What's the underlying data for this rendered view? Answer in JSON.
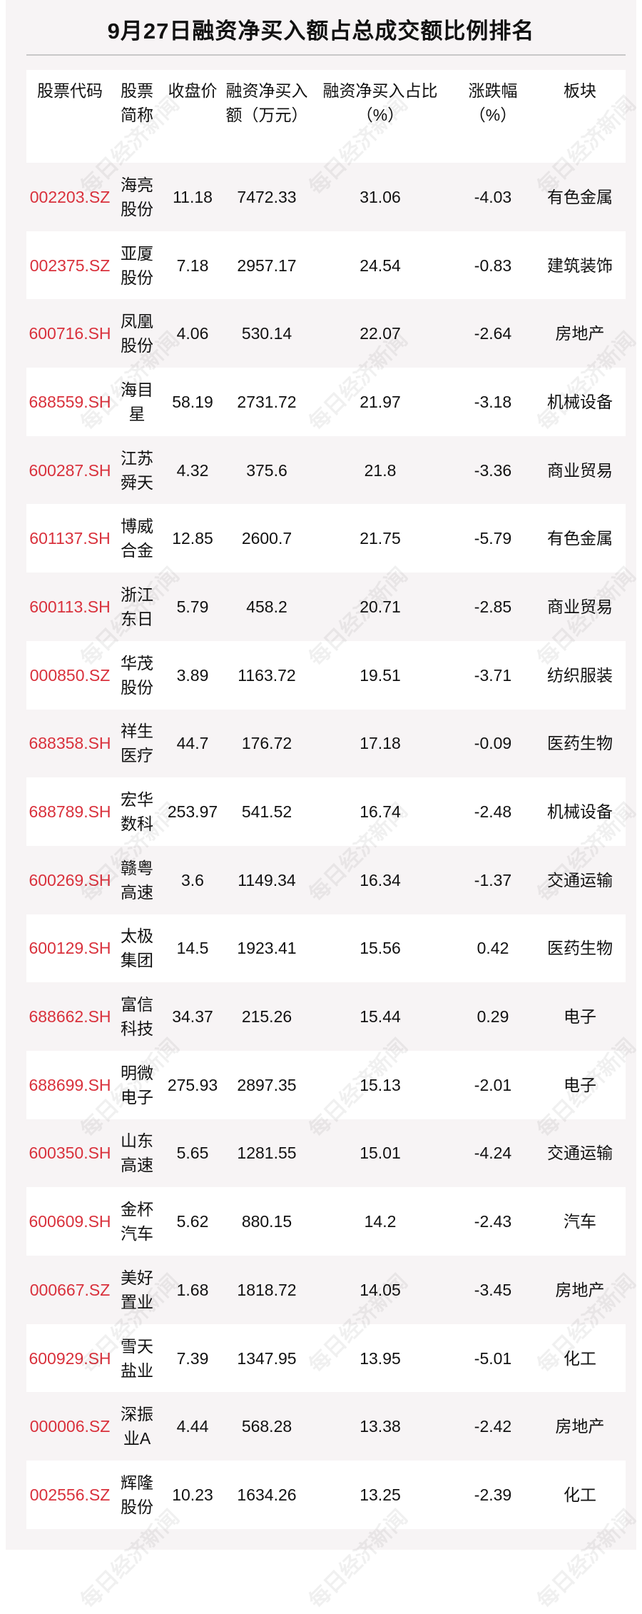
{
  "title": "9月27日融资净买入额占总成交额比例排名",
  "watermark": "每日经济新闻",
  "colors": {
    "code": "#d9313c",
    "background": "#f7f4f5"
  },
  "headers": [
    "股票代码",
    "股票简称",
    "收盘价",
    "融资净买入额（万元）",
    "融资净买入占比（%）",
    "涨跌幅（%）",
    "板块"
  ],
  "rows": [
    [
      "002203.SZ",
      "海亮股份",
      "11.18",
      "7472.33",
      "31.06",
      "-4.03",
      "有色金属"
    ],
    [
      "002375.SZ",
      "亚厦股份",
      "7.18",
      "2957.17",
      "24.54",
      "-0.83",
      "建筑装饰"
    ],
    [
      "600716.SH",
      "凤凰股份",
      "4.06",
      "530.14",
      "22.07",
      "-2.64",
      "房地产"
    ],
    [
      "688559.SH",
      "海目星",
      "58.19",
      "2731.72",
      "21.97",
      "-3.18",
      "机械设备"
    ],
    [
      "600287.SH",
      "江苏舜天",
      "4.32",
      "375.6",
      "21.8",
      "-3.36",
      "商业贸易"
    ],
    [
      "601137.SH",
      "博威合金",
      "12.85",
      "2600.7",
      "21.75",
      "-5.79",
      "有色金属"
    ],
    [
      "600113.SH",
      "浙江东日",
      "5.79",
      "458.2",
      "20.71",
      "-2.85",
      "商业贸易"
    ],
    [
      "000850.SZ",
      "华茂股份",
      "3.89",
      "1163.72",
      "19.51",
      "-3.71",
      "纺织服装"
    ],
    [
      "688358.SH",
      "祥生医疗",
      "44.7",
      "176.72",
      "17.18",
      "-0.09",
      "医药生物"
    ],
    [
      "688789.SH",
      "宏华数科",
      "253.97",
      "541.52",
      "16.74",
      "-2.48",
      "机械设备"
    ],
    [
      "600269.SH",
      "赣粤高速",
      "3.6",
      "1149.34",
      "16.34",
      "-1.37",
      "交通运输"
    ],
    [
      "600129.SH",
      "太极集团",
      "14.5",
      "1923.41",
      "15.56",
      "0.42",
      "医药生物"
    ],
    [
      "688662.SH",
      "富信科技",
      "34.37",
      "215.26",
      "15.44",
      "0.29",
      "电子"
    ],
    [
      "688699.SH",
      "明微电子",
      "275.93",
      "2897.35",
      "15.13",
      "-2.01",
      "电子"
    ],
    [
      "600350.SH",
      "山东高速",
      "5.65",
      "1281.55",
      "15.01",
      "-4.24",
      "交通运输"
    ],
    [
      "600609.SH",
      "金杯汽车",
      "5.62",
      "880.15",
      "14.2",
      "-2.43",
      "汽车"
    ],
    [
      "000667.SZ",
      "美好置业",
      "1.68",
      "1818.72",
      "14.05",
      "-3.45",
      "房地产"
    ],
    [
      "600929.SH",
      "雪天盐业",
      "7.39",
      "1347.95",
      "13.95",
      "-5.01",
      "化工"
    ],
    [
      "000006.SZ",
      "深振业A",
      "4.44",
      "568.28",
      "13.38",
      "-2.42",
      "房地产"
    ],
    [
      "002556.SZ",
      "辉隆股份",
      "10.23",
      "1634.26",
      "13.25",
      "-2.39",
      "化工"
    ]
  ]
}
